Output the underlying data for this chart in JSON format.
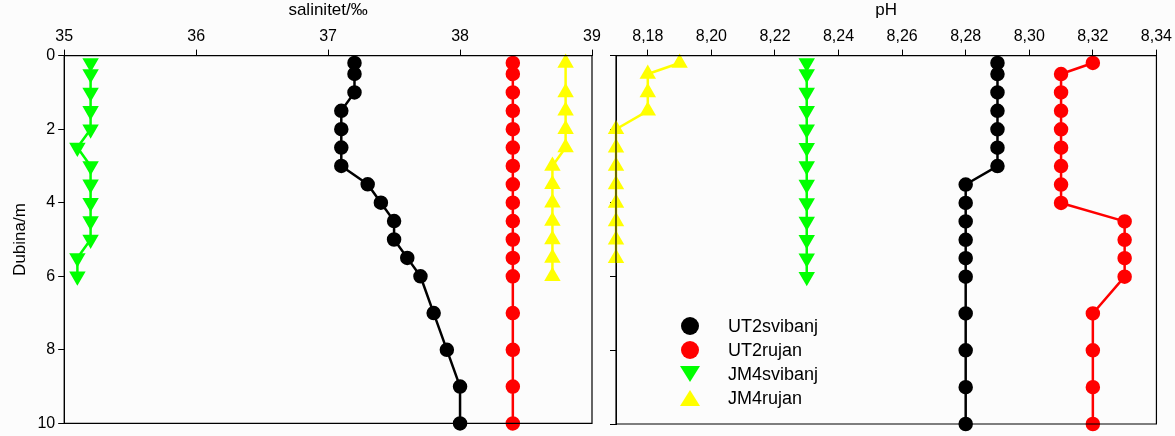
{
  "chart_data": [
    {
      "type": "line",
      "xlabel": "salinitet/‰",
      "ylabel": "Dubina/m",
      "xlim": [
        35,
        39
      ],
      "xticks": [
        35,
        36,
        37,
        38,
        39
      ],
      "ylim": [
        10,
        0
      ],
      "yticks": [
        0,
        2,
        4,
        6,
        8,
        10
      ],
      "grid": false,
      "legend": false,
      "line_style": "solid",
      "series": [
        {
          "color": "#000000",
          "marker": "circle",
          "x": [
            37.2,
            37.2,
            37.2,
            37.1,
            37.1,
            37.1,
            37.1,
            37.3,
            37.4,
            37.5,
            37.5,
            37.6,
            37.7,
            37.8,
            37.9,
            38,
            38
          ],
          "values": [
            0.2,
            0.5,
            1,
            1.5,
            2,
            2.5,
            3,
            3.5,
            4,
            4.5,
            5,
            5.5,
            6,
            7,
            8,
            9,
            10
          ]
        },
        {
          "color": "#ff0000",
          "marker": "circle",
          "x": [
            38.4,
            38.4,
            38.4,
            38.4,
            38.4,
            38.4,
            38.4,
            38.4,
            38.4,
            38.4,
            38.4,
            38.4,
            38.4,
            38.4,
            38.4,
            38.4,
            38.4
          ],
          "values": [
            0.2,
            0.5,
            1,
            1.5,
            2,
            2.5,
            3,
            3.5,
            4,
            4.5,
            5,
            5.5,
            6,
            7,
            8,
            9,
            10
          ]
        },
        {
          "color": "#00ff00",
          "marker": "triangle-down",
          "x": [
            35.2,
            35.2,
            35.2,
            35.2,
            35.2,
            35.1,
            35.2,
            35.2,
            35.2,
            35.2,
            35.2,
            35.1,
            35.1
          ],
          "values": [
            0.2,
            0.5,
            1,
            1.5,
            2,
            2.5,
            3,
            3.5,
            4,
            4.5,
            5,
            5.5,
            6
          ]
        },
        {
          "color": "#ffff00",
          "marker": "triangle",
          "x": [
            38.8,
            38.8,
            38.8,
            38.8,
            38.8,
            38.7,
            38.7,
            38.7,
            38.7,
            38.7,
            38.7,
            38.7
          ],
          "values": [
            0.2,
            1,
            1.5,
            2,
            2.5,
            3,
            3.5,
            4,
            4.5,
            5,
            5.5,
            6
          ]
        }
      ]
    },
    {
      "type": "line",
      "xlabel": "pH",
      "xlim": [
        8.17,
        8.34
      ],
      "xticks": [
        {
          "value": 8.18,
          "label": "8,18"
        },
        {
          "value": 8.2,
          "label": "8,20"
        },
        {
          "value": 8.22,
          "label": "8,22"
        },
        {
          "value": 8.24,
          "label": "8,24"
        },
        {
          "value": 8.26,
          "label": "8,26"
        },
        {
          "value": 8.28,
          "label": "8,28"
        },
        {
          "value": 8.3,
          "label": "8,30"
        },
        {
          "value": 8.32,
          "label": "8,32"
        },
        {
          "value": 8.34,
          "label": "8,34"
        }
      ],
      "ylim": [
        10,
        0
      ],
      "yticks": [
        0,
        2,
        4,
        6,
        8,
        10
      ],
      "tick_labels": "x",
      "grid": false,
      "legend": "bottom left",
      "line_style": "solid",
      "series": [
        {
          "name": "UT2svibanj",
          "color": "#000000",
          "marker": "circle",
          "x": [
            8.29,
            8.29,
            8.29,
            8.29,
            8.29,
            8.29,
            8.29,
            8.28,
            8.28,
            8.28,
            8.28,
            8.28,
            8.28,
            8.28,
            8.28,
            8.28,
            8.28
          ],
          "values": [
            0.2,
            0.5,
            1,
            1.5,
            2,
            2.5,
            3,
            3.5,
            4,
            4.5,
            5,
            5.5,
            6,
            7,
            8,
            9,
            10
          ]
        },
        {
          "name": "UT2rujan",
          "color": "#ff0000",
          "marker": "circle",
          "x": [
            8.32,
            8.31,
            8.31,
            8.31,
            8.31,
            8.31,
            8.31,
            8.31,
            8.31,
            8.33,
            8.33,
            8.33,
            8.33,
            8.32,
            8.32,
            8.32,
            8.32
          ],
          "values": [
            0.2,
            0.5,
            1,
            1.5,
            2,
            2.5,
            3,
            3.5,
            4,
            4.5,
            5,
            5.5,
            6,
            7,
            8,
            9,
            10
          ]
        },
        {
          "name": "JM4svibanj",
          "color": "#00ff00",
          "marker": "triangle-down",
          "x": [
            8.23,
            8.23,
            8.23,
            8.23,
            8.23,
            8.23,
            8.23,
            8.23,
            8.23,
            8.23,
            8.23,
            8.23,
            8.23
          ],
          "values": [
            0.2,
            0.5,
            1,
            1.5,
            2,
            2.5,
            3,
            3.5,
            4,
            4.5,
            5,
            5.5,
            6
          ]
        },
        {
          "name": "JM4rujan",
          "color": "#ffff00",
          "marker": "triangle",
          "x": [
            8.19,
            8.18,
            8.18,
            8.18,
            8.17,
            8.17,
            8.17,
            8.17,
            8.17,
            8.17,
            8.17,
            8.17
          ],
          "values": [
            0.2,
            0.5,
            1,
            1.5,
            2,
            2.5,
            3,
            3.5,
            4,
            4.5,
            5,
            5.5
          ]
        }
      ]
    }
  ]
}
